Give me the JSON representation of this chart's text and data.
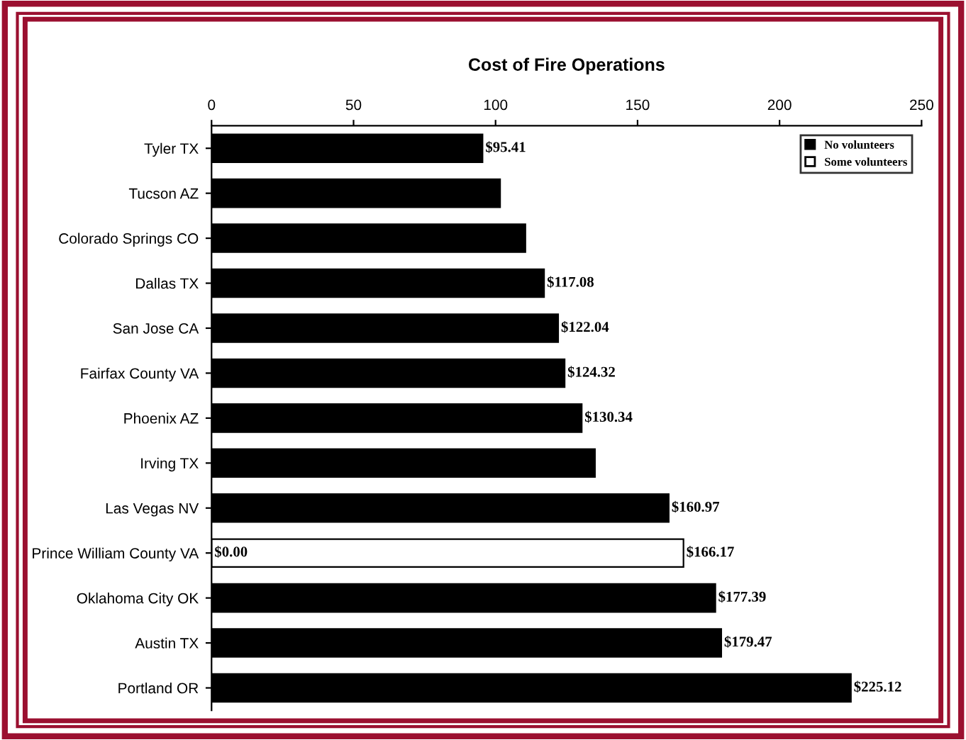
{
  "chart_data": {
    "type": "bar",
    "orientation": "horizontal",
    "title": "Cost of Fire Operations",
    "categories": [
      "Tyler TX",
      "Tucson AZ",
      "Colorado Springs CO",
      "Dallas TX",
      "San Jose CA",
      "Fairfax County VA",
      "Phoenix AZ",
      "Irving TX",
      "Las Vegas NV",
      "Prince William County VA",
      "Oklahoma City OK",
      "Austin TX",
      "Portland OR"
    ],
    "series": [
      {
        "name": "No volunteers",
        "color": "#000000",
        "values": [
          95.41,
          101.6,
          110.5,
          117.08,
          122.04,
          124.32,
          130.34,
          135.0,
          160.97,
          0,
          177.39,
          179.47,
          225.12
        ],
        "value_labels": [
          "$95.41",
          null,
          null,
          "$117.08",
          "$122.04",
          "$124.32",
          "$130.34",
          null,
          "$160.97",
          "$0.00",
          "$177.39",
          "$179.47",
          "$225.12"
        ]
      },
      {
        "name": "Some volunteers",
        "color": "#ffffff",
        "values": [
          null,
          null,
          null,
          null,
          null,
          null,
          null,
          null,
          null,
          166.17,
          null,
          null,
          null
        ],
        "value_labels": [
          null,
          null,
          null,
          null,
          null,
          null,
          null,
          null,
          null,
          "$166.17",
          null,
          null,
          null
        ]
      }
    ],
    "xlim": [
      0,
      250
    ],
    "xticks": [
      0,
      50,
      100,
      150,
      200,
      250
    ],
    "grid": false,
    "legend": "top right"
  }
}
